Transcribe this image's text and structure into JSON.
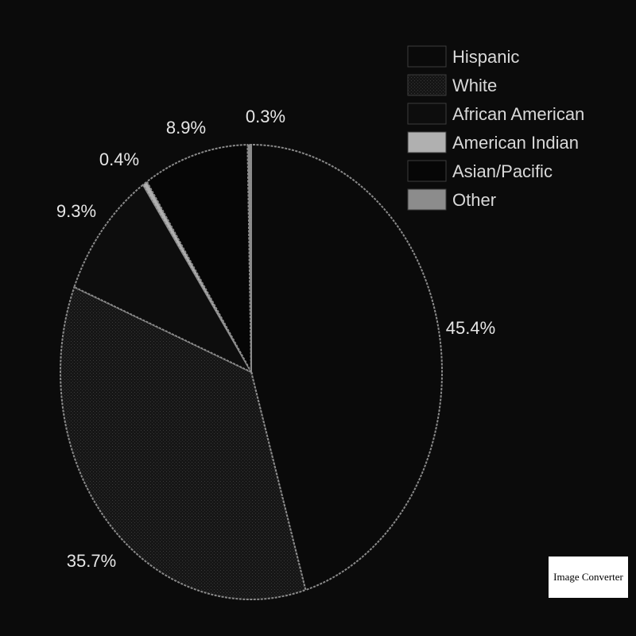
{
  "chart_data": {
    "type": "pie",
    "categories": [
      "Hispanic",
      "White",
      "African American",
      "American Indian",
      "Asian/Pacific",
      "Other"
    ],
    "values": [
      45.4,
      35.7,
      9.3,
      0.4,
      8.9,
      0.3
    ],
    "labels": [
      "45.4%",
      "35.7%",
      "9.3%",
      "0.4%",
      "8.9%",
      "0.3%"
    ],
    "legend_placement": "top-right",
    "colors": [
      "#0a0a0a",
      "#1c1c1c",
      "#0d0d0d",
      "#b0b0b0",
      "#060606",
      "#8c8c8c"
    ],
    "outline_color": "#8a8a8a"
  },
  "legend": {
    "items": [
      "Hispanic",
      "White",
      "African American",
      "American Indian",
      "Asian/Pacific",
      "Other"
    ]
  },
  "watermark": {
    "text": "Image Converter"
  }
}
